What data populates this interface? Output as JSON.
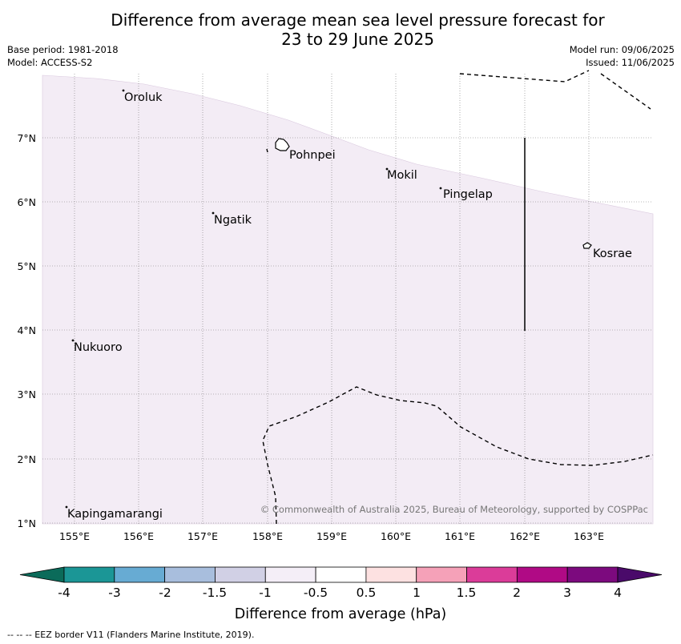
{
  "header": {
    "title_line1": "Difference from average mean sea level pressure forecast for",
    "title_line2": "23 to 29 June 2025",
    "base_period": "Base period: 1981-2018",
    "model": "Model: ACCESS-S2",
    "model_run": "Model run: 09/06/2025",
    "issued": "Issued: 11/06/2025"
  },
  "map": {
    "lat_ticks": [
      "7°N",
      "6°N",
      "5°N",
      "4°N",
      "3°N",
      "2°N",
      "1°N"
    ],
    "lon_ticks": [
      "155°E",
      "156°E",
      "157°E",
      "158°E",
      "159°E",
      "160°E",
      "161°E",
      "162°E",
      "163°E"
    ],
    "places": [
      {
        "name": "Oroluk"
      },
      {
        "name": "Pohnpei"
      },
      {
        "name": "Mokil"
      },
      {
        "name": "Pingelap"
      },
      {
        "name": "Ngatik"
      },
      {
        "name": "Kosrae"
      },
      {
        "name": "Nukuoro"
      },
      {
        "name": "Kapingamarangi"
      }
    ],
    "shaded_region_color": "#f3ecf5",
    "copyright": "© Commonwealth of Australia 2025, Bureau of Meteorology, supported by COSPPac"
  },
  "colorbar": {
    "label": "Difference from average (hPa)",
    "ticks": [
      "-4",
      "-3",
      "-2",
      "-1.5",
      "-1",
      "-0.5",
      "0.5",
      "1",
      "1.5",
      "2",
      "3",
      "4"
    ],
    "colors": [
      "#1b9696",
      "#67abd3",
      "#a8bedd",
      "#d1d0e5",
      "#f4eef7",
      "#ffffff",
      "#fde1e1",
      "#f5a1b8",
      "#db3c99",
      "#b00a85",
      "#7c0a7e"
    ],
    "under_color": "#0b6b5a",
    "over_color": "#4a0a6a"
  },
  "footnote": "--  --  -- EEZ border V11 (Flanders Marine Institute, 2019)."
}
